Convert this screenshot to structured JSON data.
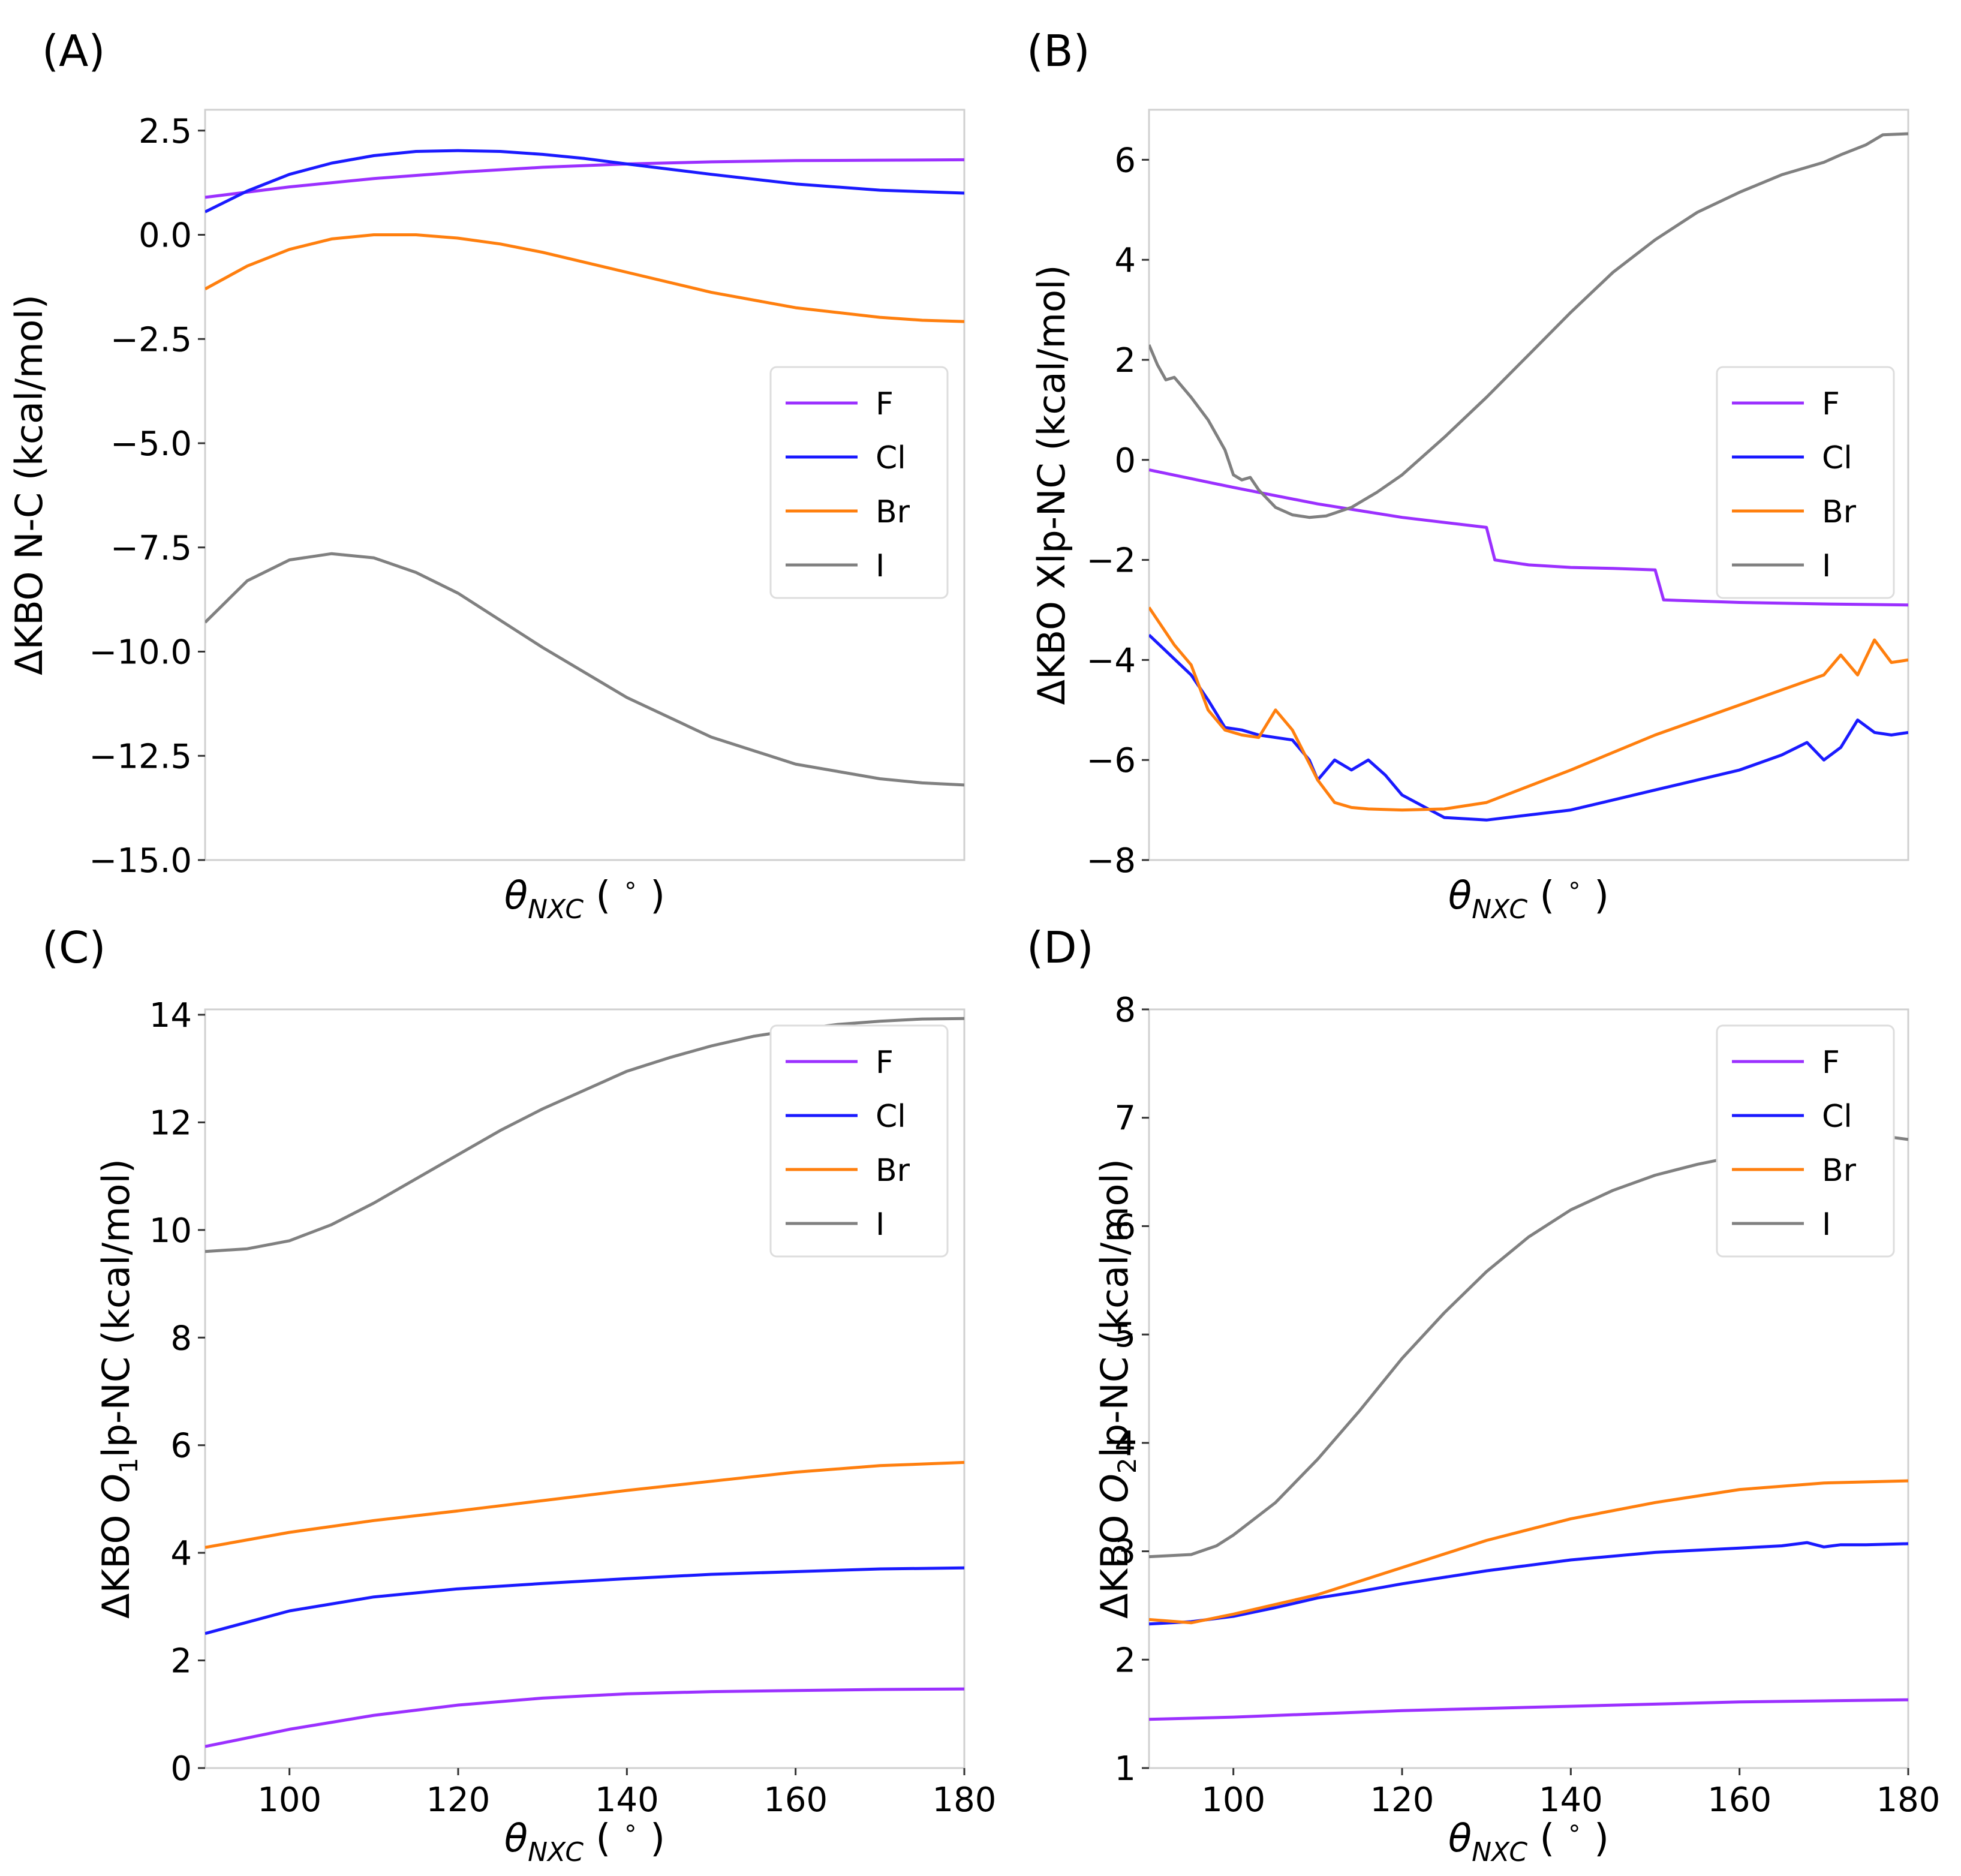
{
  "chart_data": [
    {
      "type": "line",
      "panel_label": "(A)",
      "ylabel": "ΔKBO N-C (kcal/mol)",
      "xlabel": "θNXC (°)",
      "xlim": [
        90,
        180
      ],
      "ylim": [
        -15.0,
        3.0
      ],
      "show_x_tick_labels": false,
      "yticks": [
        2.5,
        0.0,
        -2.5,
        -5.0,
        -7.5,
        -10.0,
        -12.5,
        -15.0
      ],
      "ytick_labels": [
        "2.5",
        "0.0",
        "−2.5",
        "−5.0",
        "−7.5",
        "−10.0",
        "−12.5",
        "−15.0"
      ],
      "legend_position": "center-right",
      "series": [
        {
          "name": "F",
          "color": "#9b30ff",
          "x": [
            90,
            100,
            110,
            120,
            130,
            140,
            150,
            160,
            170,
            180
          ],
          "y": [
            0.9,
            1.15,
            1.35,
            1.5,
            1.62,
            1.7,
            1.75,
            1.78,
            1.79,
            1.8
          ]
        },
        {
          "name": "Cl",
          "color": "#1a1aff",
          "x": [
            90,
            95,
            100,
            105,
            110,
            115,
            120,
            125,
            130,
            135,
            140,
            150,
            160,
            170,
            180
          ],
          "y": [
            0.55,
            1.05,
            1.45,
            1.72,
            1.9,
            2.0,
            2.02,
            2.0,
            1.93,
            1.83,
            1.7,
            1.45,
            1.22,
            1.07,
            1.0
          ]
        },
        {
          "name": "Br",
          "color": "#ff7f0e",
          "x": [
            90,
            95,
            100,
            105,
            110,
            115,
            120,
            125,
            130,
            140,
            150,
            160,
            170,
            175,
            180
          ],
          "y": [
            -1.3,
            -0.75,
            -0.35,
            -0.1,
            0.0,
            0.0,
            -0.08,
            -0.22,
            -0.42,
            -0.9,
            -1.38,
            -1.75,
            -1.98,
            -2.05,
            -2.08
          ]
        },
        {
          "name": "I",
          "color": "#808080",
          "x": [
            90,
            95,
            100,
            105,
            110,
            115,
            120,
            130,
            140,
            150,
            160,
            170,
            175,
            180
          ],
          "y": [
            -9.3,
            -8.3,
            -7.8,
            -7.65,
            -7.75,
            -8.1,
            -8.6,
            -9.9,
            -11.1,
            -12.05,
            -12.7,
            -13.05,
            -13.15,
            -13.2
          ]
        }
      ]
    },
    {
      "type": "line",
      "panel_label": "(B)",
      "ylabel": "ΔKBO Xlp-NC (kcal/mol)",
      "xlabel": "θNXC (°)",
      "xlim": [
        90,
        180
      ],
      "ylim": [
        -8,
        7
      ],
      "show_x_tick_labels": false,
      "yticks": [
        6,
        4,
        2,
        0,
        -2,
        -4,
        -6,
        -8
      ],
      "ytick_labels": [
        "6",
        "4",
        "2",
        "0",
        "−2",
        "−4",
        "−6",
        "−8"
      ],
      "legend_position": "top-right",
      "series": [
        {
          "name": "F",
          "color": "#9b30ff",
          "x": [
            90,
            100,
            110,
            120,
            130,
            131,
            135,
            140,
            145,
            150,
            151,
            160,
            170,
            180
          ],
          "y": [
            -0.2,
            -0.55,
            -0.88,
            -1.15,
            -1.35,
            -2.0,
            -2.1,
            -2.15,
            -2.17,
            -2.2,
            -2.8,
            -2.85,
            -2.88,
            -2.9
          ]
        },
        {
          "name": "Cl",
          "color": "#1a1aff",
          "x": [
            90,
            95,
            97,
            99,
            101,
            103,
            105,
            107,
            109,
            110,
            112,
            114,
            116,
            118,
            120,
            125,
            130,
            140,
            150,
            160,
            165,
            168,
            170,
            172,
            174,
            176,
            178,
            180
          ],
          "y": [
            -3.5,
            -4.3,
            -4.8,
            -5.35,
            -5.4,
            -5.5,
            -5.55,
            -5.6,
            -6.0,
            -6.4,
            -6.0,
            -6.2,
            -6.0,
            -6.3,
            -6.7,
            -7.15,
            -7.2,
            -7.0,
            -6.6,
            -6.2,
            -5.9,
            -5.65,
            -6.0,
            -5.75,
            -5.2,
            -5.45,
            -5.5,
            -5.45
          ]
        },
        {
          "name": "Br",
          "color": "#ff7f0e",
          "x": [
            90,
            93,
            95,
            97,
            99,
            101,
            103,
            105,
            107,
            110,
            112,
            114,
            116,
            120,
            125,
            130,
            140,
            150,
            160,
            170,
            172,
            174,
            176,
            178,
            180
          ],
          "y": [
            -2.95,
            -3.7,
            -4.1,
            -5.0,
            -5.4,
            -5.5,
            -5.55,
            -5.0,
            -5.4,
            -6.4,
            -6.85,
            -6.95,
            -6.98,
            -7.0,
            -6.98,
            -6.85,
            -6.2,
            -5.5,
            -4.9,
            -4.3,
            -3.9,
            -4.3,
            -3.6,
            -4.05,
            -4.0
          ]
        },
        {
          "name": "I",
          "color": "#808080",
          "x": [
            90,
            91,
            92,
            93,
            95,
            97,
            99,
            100,
            101,
            102,
            103,
            105,
            107,
            109,
            111,
            114,
            117,
            120,
            125,
            130,
            135,
            140,
            145,
            150,
            155,
            160,
            165,
            170,
            172,
            175,
            177,
            180
          ],
          "y": [
            2.3,
            1.9,
            1.6,
            1.65,
            1.25,
            0.8,
            0.2,
            -0.3,
            -0.4,
            -0.35,
            -0.6,
            -0.95,
            -1.1,
            -1.15,
            -1.12,
            -0.95,
            -0.65,
            -0.3,
            0.45,
            1.25,
            2.1,
            2.95,
            3.75,
            4.4,
            4.95,
            5.35,
            5.7,
            5.95,
            6.1,
            6.3,
            6.5,
            6.52
          ]
        }
      ]
    },
    {
      "type": "line",
      "panel_label": "(C)",
      "ylabel_parts": [
        "ΔKBO ",
        "O",
        "1",
        "lp-NC (kcal/mol)"
      ],
      "xlabel": "θNXC (°)",
      "xlim": [
        90,
        180
      ],
      "ylim": [
        0,
        14.1
      ],
      "show_x_tick_labels": true,
      "xticks": [
        100,
        120,
        140,
        160,
        180
      ],
      "yticks": [
        14,
        12,
        10,
        8,
        6,
        4,
        2,
        0
      ],
      "ytick_labels": [
        "14",
        "12",
        "10",
        "8",
        "6",
        "4",
        "2",
        "0"
      ],
      "legend_position": "top-right",
      "series": [
        {
          "name": "F",
          "color": "#9b30ff",
          "x": [
            90,
            100,
            110,
            120,
            130,
            140,
            150,
            160,
            170,
            180
          ],
          "y": [
            0.4,
            0.72,
            0.98,
            1.17,
            1.3,
            1.38,
            1.42,
            1.44,
            1.46,
            1.47
          ]
        },
        {
          "name": "Cl",
          "color": "#1a1aff",
          "x": [
            90,
            100,
            110,
            120,
            130,
            140,
            150,
            160,
            170,
            180
          ],
          "y": [
            2.5,
            2.92,
            3.18,
            3.33,
            3.43,
            3.52,
            3.6,
            3.65,
            3.7,
            3.72
          ]
        },
        {
          "name": "Br",
          "color": "#ff7f0e",
          "x": [
            90,
            100,
            110,
            120,
            130,
            140,
            150,
            160,
            170,
            180
          ],
          "y": [
            4.1,
            4.38,
            4.6,
            4.78,
            4.97,
            5.16,
            5.33,
            5.5,
            5.62,
            5.68
          ]
        },
        {
          "name": "I",
          "color": "#808080",
          "x": [
            90,
            95,
            100,
            105,
            110,
            115,
            120,
            125,
            130,
            135,
            140,
            145,
            150,
            155,
            160,
            165,
            170,
            175,
            180
          ],
          "y": [
            9.6,
            9.65,
            9.8,
            10.1,
            10.5,
            10.95,
            11.4,
            11.85,
            12.25,
            12.6,
            12.95,
            13.2,
            13.42,
            13.6,
            13.72,
            13.82,
            13.88,
            13.92,
            13.93
          ]
        }
      ]
    },
    {
      "type": "line",
      "panel_label": "(D)",
      "ylabel_parts": [
        "ΔKBO ",
        "O",
        "2",
        "lp-NC (kcal/mol)"
      ],
      "xlabel": "θNXC (°)",
      "xlim": [
        90,
        180
      ],
      "ylim": [
        1,
        8.0
      ],
      "show_x_tick_labels": true,
      "xticks": [
        100,
        120,
        140,
        160,
        180
      ],
      "yticks": [
        8,
        7,
        6,
        5,
        4,
        3,
        2,
        1
      ],
      "ytick_labels": [
        "8",
        "7",
        "6",
        "5",
        "4",
        "3",
        "2",
        "1"
      ],
      "legend_position": "top-right",
      "series": [
        {
          "name": "F",
          "color": "#9b30ff",
          "x": [
            90,
            100,
            110,
            120,
            130,
            140,
            150,
            160,
            170,
            180
          ],
          "y": [
            1.45,
            1.47,
            1.5,
            1.53,
            1.55,
            1.57,
            1.59,
            1.61,
            1.62,
            1.63
          ]
        },
        {
          "name": "Cl",
          "color": "#1a1aff",
          "x": [
            90,
            95,
            100,
            105,
            110,
            115,
            120,
            130,
            140,
            150,
            160,
            165,
            168,
            170,
            172,
            175,
            180
          ],
          "y": [
            2.33,
            2.35,
            2.4,
            2.48,
            2.57,
            2.63,
            2.7,
            2.82,
            2.92,
            2.99,
            3.03,
            3.05,
            3.08,
            3.04,
            3.06,
            3.06,
            3.07
          ]
        },
        {
          "name": "Br",
          "color": "#ff7f0e",
          "x": [
            90,
            95,
            100,
            110,
            120,
            130,
            140,
            150,
            160,
            170,
            180
          ],
          "y": [
            2.37,
            2.34,
            2.42,
            2.6,
            2.85,
            3.1,
            3.3,
            3.45,
            3.57,
            3.63,
            3.65
          ]
        },
        {
          "name": "I",
          "color": "#808080",
          "x": [
            90,
            95,
            98,
            100,
            105,
            110,
            115,
            120,
            125,
            130,
            135,
            140,
            145,
            150,
            155,
            160,
            165,
            170,
            175,
            178,
            180
          ],
          "y": [
            2.95,
            2.97,
            3.05,
            3.15,
            3.45,
            3.85,
            4.3,
            4.78,
            5.2,
            5.58,
            5.9,
            6.15,
            6.33,
            6.47,
            6.57,
            6.65,
            6.7,
            6.76,
            6.8,
            6.82,
            6.8
          ]
        }
      ]
    }
  ]
}
